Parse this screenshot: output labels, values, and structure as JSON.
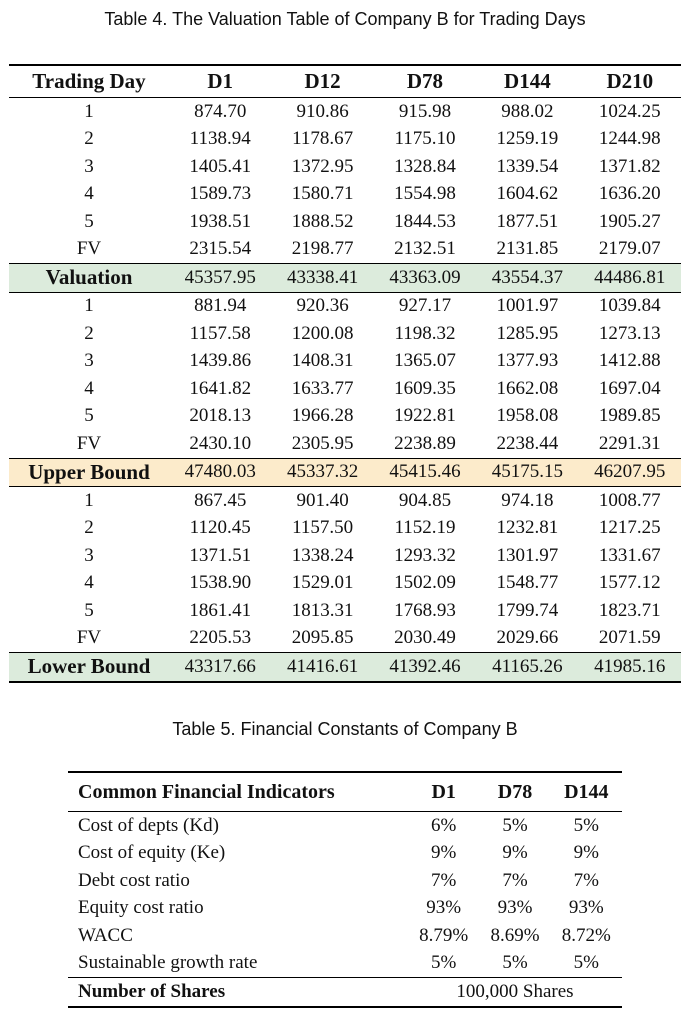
{
  "table4": {
    "caption": "Table 4.  The Valuation Table of Company B for Trading Days",
    "header": [
      "Trading Day",
      "D1",
      "D12",
      "D78",
      "D144",
      "D210"
    ],
    "valuation_rows": [
      [
        "1",
        "874.70",
        "910.86",
        "915.98",
        "988.02",
        "1024.25"
      ],
      [
        "2",
        "1138.94",
        "1178.67",
        "1175.10",
        "1259.19",
        "1244.98"
      ],
      [
        "3",
        "1405.41",
        "1372.95",
        "1328.84",
        "1339.54",
        "1371.82"
      ],
      [
        "4",
        "1589.73",
        "1580.71",
        "1554.98",
        "1604.62",
        "1636.20"
      ],
      [
        "5",
        "1938.51",
        "1888.52",
        "1844.53",
        "1877.51",
        "1905.27"
      ],
      [
        "FV",
        "2315.54",
        "2198.77",
        "2132.51",
        "2131.85",
        "2179.07"
      ]
    ],
    "valuation_total": [
      "Valuation",
      "45357.95",
      "43338.41",
      "43363.09",
      "43554.37",
      "44486.81"
    ],
    "upper_rows": [
      [
        "1",
        "881.94",
        "920.36",
        "927.17",
        "1001.97",
        "1039.84"
      ],
      [
        "2",
        "1157.58",
        "1200.08",
        "1198.32",
        "1285.95",
        "1273.13"
      ],
      [
        "3",
        "1439.86",
        "1408.31",
        "1365.07",
        "1377.93",
        "1412.88"
      ],
      [
        "4",
        "1641.82",
        "1633.77",
        "1609.35",
        "1662.08",
        "1697.04"
      ],
      [
        "5",
        "2018.13",
        "1966.28",
        "1922.81",
        "1958.08",
        "1989.85"
      ],
      [
        "FV",
        "2430.10",
        "2305.95",
        "2238.89",
        "2238.44",
        "2291.31"
      ]
    ],
    "upper_total": [
      "Upper Bound",
      "47480.03",
      "45337.32",
      "45415.46",
      "45175.15",
      "46207.95"
    ],
    "lower_rows": [
      [
        "1",
        "867.45",
        "901.40",
        "904.85",
        "974.18",
        "1008.77"
      ],
      [
        "2",
        "1120.45",
        "1157.50",
        "1152.19",
        "1232.81",
        "1217.25"
      ],
      [
        "3",
        "1371.51",
        "1338.24",
        "1293.32",
        "1301.97",
        "1331.67"
      ],
      [
        "4",
        "1538.90",
        "1529.01",
        "1502.09",
        "1548.77",
        "1577.12"
      ],
      [
        "5",
        "1861.41",
        "1813.31",
        "1768.93",
        "1799.74",
        "1823.71"
      ],
      [
        "FV",
        "2205.53",
        "2095.85",
        "2030.49",
        "2029.66",
        "2071.59"
      ]
    ],
    "lower_total": [
      "Lower Bound",
      "43317.66",
      "41416.61",
      "41392.46",
      "41165.26",
      "41985.16"
    ],
    "colors": {
      "valuation_bg": "#dcebdc",
      "upper_bg": "#fcebcb",
      "lower_bg": "#dcebdc"
    }
  },
  "table5": {
    "caption": "Table 5.  Financial Constants of Company B",
    "header": [
      "Common Financial Indicators",
      "D1",
      "D78",
      "D144"
    ],
    "rows": [
      [
        "Cost of depts (Kd)",
        "6%",
        "5%",
        "5%"
      ],
      [
        "Cost of equity (Ke)",
        "9%",
        "9%",
        "9%"
      ],
      [
        "Debt cost ratio",
        "7%",
        "7%",
        "7%"
      ],
      [
        "Equity cost ratio",
        "93%",
        "93%",
        "93%"
      ],
      [
        "WACC",
        "8.79%",
        "8.69%",
        "8.72%"
      ],
      [
        "Sustainable growth rate",
        "5%",
        "5%",
        "5%"
      ]
    ],
    "shares_label": "Number of Shares",
    "shares_value": "100,000 Shares"
  }
}
